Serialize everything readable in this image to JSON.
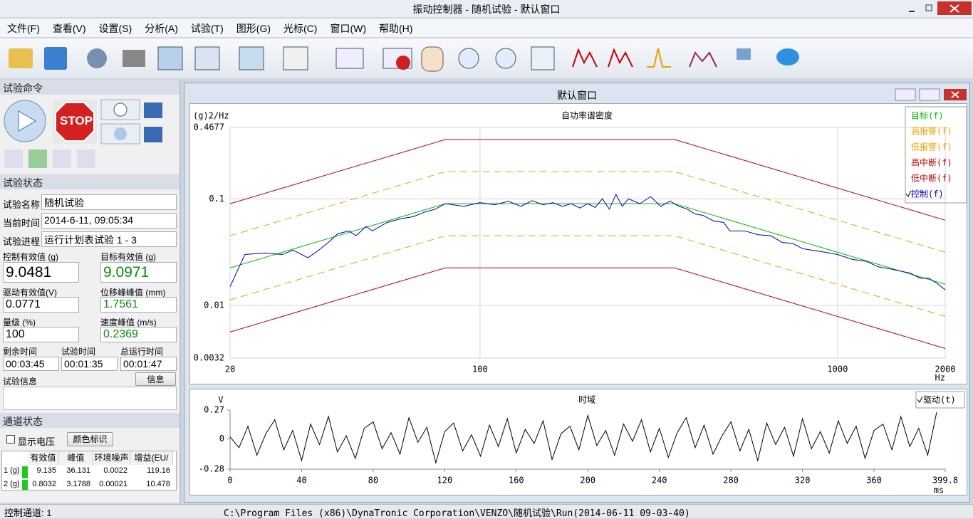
{
  "window": {
    "title": "振动控制器 - 随机试验 - 默认窗口"
  },
  "menu": [
    "文件(F)",
    "查看(V)",
    "设置(S)",
    "分析(A)",
    "试验(T)",
    "图形(G)",
    "光标(C)",
    "窗口(W)",
    "帮助(H)"
  ],
  "test_command": {
    "title": "试验命令",
    "stop": "STOP"
  },
  "test_status": {
    "title": "试验状态",
    "fields": [
      {
        "label": "试验名称",
        "value": "随机试验"
      },
      {
        "label": "当前时间",
        "value": "2014-6-11, 09:05:34"
      },
      {
        "label": "试验进程",
        "value": "运行计划表试验 1 - 3"
      }
    ],
    "readings": [
      {
        "label": "控制有效值 (g)",
        "value": "9.0481"
      },
      {
        "label": "目标有效值 (g)",
        "value": "9.0971"
      },
      {
        "label": "驱动有效值(V)",
        "value": "0.0771"
      },
      {
        "label": "位移峰峰值 (mm)",
        "value": "1.7561"
      },
      {
        "label": "量级 (%)",
        "value": "100"
      },
      {
        "label": "速度峰值 (m/s)",
        "value": "0.2369"
      }
    ],
    "times": [
      {
        "label": "剩余时间",
        "value": "00:03:45"
      },
      {
        "label": "试验时间",
        "value": "00:01:35"
      },
      {
        "label": "总运行时间",
        "value": "00:01:47"
      }
    ],
    "info_label": "试验信息",
    "info_button": "信息"
  },
  "channel_status": {
    "title": "通道状态",
    "show_voltage": "显示电压",
    "color_button": "颜色标识",
    "table": {
      "header": [
        "有效值",
        "峰值",
        "环境噪声",
        "增益(EU/"
      ],
      "rows": [
        [
          "1 (g)",
          "9.135",
          "36.131",
          "0.0022",
          "119.16"
        ],
        [
          "2 (g)",
          "0.8032",
          "3.1788",
          "0.00021",
          "10.478"
        ]
      ]
    }
  },
  "inner_window": {
    "title": "默认窗口"
  },
  "status_bar": {
    "channel": "控制通道: 1",
    "path": "C:\\Program Files (x86)\\DynaTronic Corporation\\VENZO\\随机试验\\Run(2014-06-11 09-03-40)"
  },
  "chart_data": [
    {
      "type": "line",
      "title": "自功率谱密度",
      "ylabel": "(g)2/Hz",
      "xlabel": "Hz",
      "xscale": "log",
      "yscale": "log",
      "grid": true,
      "xlim": [
        20,
        2000
      ],
      "xticks": [
        20,
        100,
        1000,
        2000
      ],
      "ylim": [
        0.0032,
        0.4677
      ],
      "yticks": [
        0.0032,
        0.01,
        0.1,
        0.4677
      ],
      "series": [
        {
          "name": "目标(f)",
          "color": "#00c000",
          "dashed": false,
          "x": [
            20,
            80,
            350,
            2000
          ],
          "values": [
            0.0225,
            0.09,
            0.09,
            0.01575
          ]
        },
        {
          "name": "高报警(f)",
          "color": "#f0a000",
          "dashed": true,
          "x": [
            20,
            80,
            350,
            2000
          ],
          "values": [
            0.045,
            0.18,
            0.18,
            0.0315
          ]
        },
        {
          "name": "低报警(f)",
          "color": "#f0a000",
          "dashed": true,
          "x": [
            20,
            80,
            350,
            2000
          ],
          "values": [
            0.01125,
            0.045,
            0.045,
            0.007875
          ]
        },
        {
          "name": "高中断(f)",
          "color": "#c00000",
          "dashed": false,
          "x": [
            20,
            80,
            350,
            2000
          ],
          "values": [
            0.09,
            0.36,
            0.36,
            0.063
          ]
        },
        {
          "name": "低中断(f)",
          "color": "#c00000",
          "dashed": false,
          "x": [
            20,
            80,
            350,
            2000
          ],
          "values": [
            0.005625,
            0.0225,
            0.0225,
            0.0039375
          ]
        },
        {
          "name": "控制(f)",
          "color": "#0000c0",
          "dashed": false,
          "x": [
            20,
            22,
            25,
            28,
            30,
            33,
            35,
            38,
            40,
            43,
            45,
            48,
            50,
            55,
            60,
            65,
            70,
            75,
            80,
            90,
            100,
            110,
            120,
            130,
            140,
            150,
            160,
            170,
            180,
            190,
            200,
            210,
            220,
            230,
            240,
            250,
            260,
            280,
            300,
            320,
            340,
            360,
            380,
            400,
            420,
            450,
            480,
            500,
            550,
            600,
            650,
            700,
            750,
            800,
            900,
            1000,
            1100,
            1200,
            1300,
            1400,
            1500,
            1600,
            1700,
            1800,
            1900,
            2000
          ],
          "values": [
            0.015,
            0.03,
            0.031,
            0.03,
            0.033,
            0.028,
            0.032,
            0.04,
            0.047,
            0.05,
            0.045,
            0.055,
            0.05,
            0.06,
            0.065,
            0.068,
            0.075,
            0.08,
            0.09,
            0.085,
            0.092,
            0.088,
            0.095,
            0.085,
            0.096,
            0.088,
            0.092,
            0.085,
            0.09,
            0.082,
            0.09,
            0.083,
            0.1,
            0.08,
            0.11,
            0.085,
            0.1,
            0.09,
            0.105,
            0.085,
            0.095,
            0.085,
            0.08,
            0.072,
            0.07,
            0.062,
            0.06,
            0.05,
            0.05,
            0.046,
            0.045,
            0.039,
            0.038,
            0.034,
            0.032,
            0.03,
            0.027,
            0.026,
            0.023,
            0.022,
            0.021,
            0.02,
            0.018,
            0.018,
            0.016,
            0.014
          ]
        }
      ]
    },
    {
      "type": "line",
      "title": "时域",
      "ylabel": "V",
      "xlabel": "ms",
      "xscale": "linear",
      "yscale": "linear",
      "grid": false,
      "xlim": [
        0,
        399.8
      ],
      "xticks": [
        0,
        40,
        80,
        120,
        160,
        200,
        240,
        280,
        320,
        360,
        399.8
      ],
      "ylim": [
        -0.28,
        0.27
      ],
      "yticks": [
        -0.28,
        0,
        0.27
      ],
      "series": [
        {
          "name": "驱动(t)",
          "color": "#000000",
          "dashed": false,
          "x": [
            0,
            5,
            10,
            15,
            20,
            25,
            30,
            35,
            40,
            45,
            50,
            55,
            60,
            65,
            70,
            75,
            80,
            85,
            90,
            95,
            100,
            105,
            110,
            115,
            120,
            125,
            130,
            135,
            140,
            145,
            150,
            155,
            160,
            165,
            170,
            175,
            180,
            185,
            190,
            195,
            200,
            205,
            210,
            215,
            220,
            225,
            230,
            235,
            240,
            245,
            250,
            255,
            260,
            265,
            270,
            275,
            280,
            285,
            290,
            295,
            300,
            305,
            310,
            315,
            320,
            325,
            330,
            335,
            340,
            345,
            350,
            355,
            360,
            365,
            370,
            375,
            380,
            385,
            390,
            395
          ],
          "values": [
            0.02,
            -0.08,
            0.12,
            -0.15,
            0.05,
            0.18,
            -0.1,
            0.08,
            -0.2,
            0.14,
            -0.05,
            0.21,
            -0.12,
            0.03,
            -0.18,
            0.1,
            0.16,
            -0.09,
            0.06,
            -0.14,
            0.2,
            -0.03,
            0.11,
            -0.22,
            0.07,
            0.15,
            -0.11,
            0.04,
            -0.16,
            0.13,
            -0.07,
            0.19,
            -0.13,
            0.09,
            -0.04,
            0.17,
            -0.19,
            0.05,
            0.12,
            -0.1,
            0.22,
            -0.06,
            0.08,
            -0.15,
            0.14,
            -0.02,
            0.18,
            -0.12,
            0.1,
            -0.17,
            0.06,
            0.2,
            -0.08,
            0.13,
            -0.14,
            0.03,
            0.16,
            -0.11,
            0.09,
            -0.2,
            0.15,
            -0.05,
            0.11,
            -0.16,
            0.19,
            -0.09,
            0.07,
            -0.13,
            0.17,
            -0.04,
            0.12,
            -0.18,
            0.08,
            0.14,
            -0.1,
            0.21,
            -0.07,
            0.1,
            -0.15,
            0.25
          ]
        }
      ]
    }
  ]
}
